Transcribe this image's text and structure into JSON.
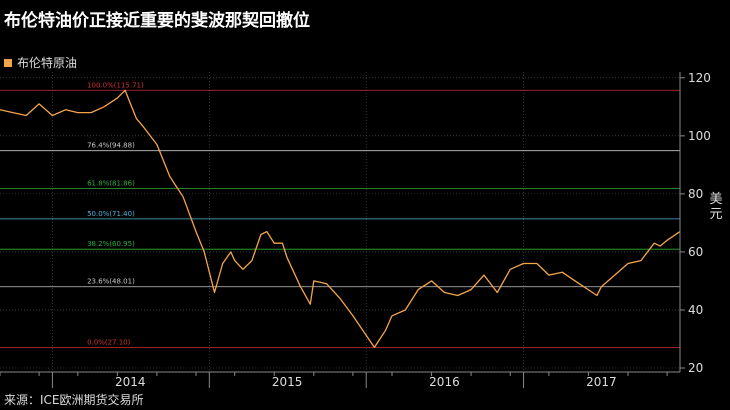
{
  "title": "布伦特油价正接近重要的斐波那契回撤位",
  "source": "来源：ICE欧洲期货交易所",
  "colors": {
    "price": "#f4a54b",
    "background": "#000000",
    "axis": "#888888"
  },
  "chart_data": {
    "type": "line",
    "legend": [
      "布伦特原油"
    ],
    "ylabel": "美元",
    "ylim": [
      20,
      122
    ],
    "yticks": [
      20,
      40,
      60,
      80,
      100,
      120
    ],
    "x_range": [
      "2013-09-01",
      "2017-12-31"
    ],
    "xtick_labels": [
      {
        "label": "2014",
        "date": "2014-07-01"
      },
      {
        "label": "2015",
        "date": "2015-07-01"
      },
      {
        "label": "2016",
        "date": "2016-07-01"
      },
      {
        "label": "2017",
        "date": "2017-07-01"
      }
    ],
    "year_boundaries": [
      "2014-01-01",
      "2015-01-01",
      "2016-01-01",
      "2017-01-01"
    ],
    "fib_levels": [
      {
        "label": "100.0%(115.71)",
        "value": 115.71,
        "color": "#d03030"
      },
      {
        "label": "76.4%(94.88)",
        "value": 94.88,
        "color": "#c8c8c8"
      },
      {
        "label": "61.8%(81.86)",
        "value": 81.86,
        "color": "#2fae3a"
      },
      {
        "label": "50.0%(71.40)",
        "value": 71.4,
        "color": "#4fb3d9"
      },
      {
        "label": "38.2%(60.95)",
        "value": 60.95,
        "color": "#2fae3a"
      },
      {
        "label": "23.6%(48.01)",
        "value": 48.01,
        "color": "#c8c8c8"
      },
      {
        "label": "0.0%(27.10)",
        "value": 27.1,
        "color": "#d03030"
      }
    ],
    "series": [
      {
        "name": "布伦特原油",
        "points": [
          [
            "2013-09-01",
            109
          ],
          [
            "2013-10-01",
            108
          ],
          [
            "2013-11-01",
            107
          ],
          [
            "2013-12-01",
            111
          ],
          [
            "2014-01-01",
            107
          ],
          [
            "2014-02-01",
            109
          ],
          [
            "2014-03-01",
            108
          ],
          [
            "2014-04-01",
            108
          ],
          [
            "2014-05-01",
            110
          ],
          [
            "2014-06-01",
            113
          ],
          [
            "2014-06-19",
            115.7
          ],
          [
            "2014-07-15",
            106
          ],
          [
            "2014-08-01",
            103
          ],
          [
            "2014-09-01",
            97
          ],
          [
            "2014-10-01",
            86
          ],
          [
            "2014-11-01",
            79
          ],
          [
            "2014-12-01",
            67
          ],
          [
            "2014-12-20",
            60
          ],
          [
            "2015-01-13",
            46
          ],
          [
            "2015-02-01",
            56
          ],
          [
            "2015-02-20",
            60
          ],
          [
            "2015-03-01",
            57
          ],
          [
            "2015-03-20",
            54
          ],
          [
            "2015-04-10",
            57
          ],
          [
            "2015-05-01",
            66
          ],
          [
            "2015-05-15",
            67
          ],
          [
            "2015-06-01",
            63
          ],
          [
            "2015-06-20",
            63
          ],
          [
            "2015-07-01",
            58
          ],
          [
            "2015-08-01",
            48
          ],
          [
            "2015-08-24",
            42
          ],
          [
            "2015-09-01",
            50
          ],
          [
            "2015-10-01",
            49
          ],
          [
            "2015-11-01",
            44
          ],
          [
            "2015-12-01",
            38
          ],
          [
            "2016-01-20",
            27.1
          ],
          [
            "2016-02-15",
            33
          ],
          [
            "2016-03-01",
            38
          ],
          [
            "2016-04-01",
            40
          ],
          [
            "2016-05-01",
            47
          ],
          [
            "2016-06-01",
            50
          ],
          [
            "2016-07-01",
            46
          ],
          [
            "2016-08-01",
            45
          ],
          [
            "2016-09-01",
            47
          ],
          [
            "2016-10-01",
            52
          ],
          [
            "2016-11-01",
            46
          ],
          [
            "2016-12-01",
            54
          ],
          [
            "2017-01-01",
            56
          ],
          [
            "2017-02-01",
            56
          ],
          [
            "2017-03-01",
            52
          ],
          [
            "2017-04-01",
            53
          ],
          [
            "2017-05-01",
            50
          ],
          [
            "2017-06-21",
            45
          ],
          [
            "2017-07-01",
            48
          ],
          [
            "2017-08-01",
            52
          ],
          [
            "2017-09-01",
            56
          ],
          [
            "2017-10-01",
            57
          ],
          [
            "2017-11-01",
            63
          ],
          [
            "2017-11-15",
            62
          ],
          [
            "2017-12-01",
            64
          ],
          [
            "2017-12-31",
            67
          ]
        ]
      }
    ]
  }
}
